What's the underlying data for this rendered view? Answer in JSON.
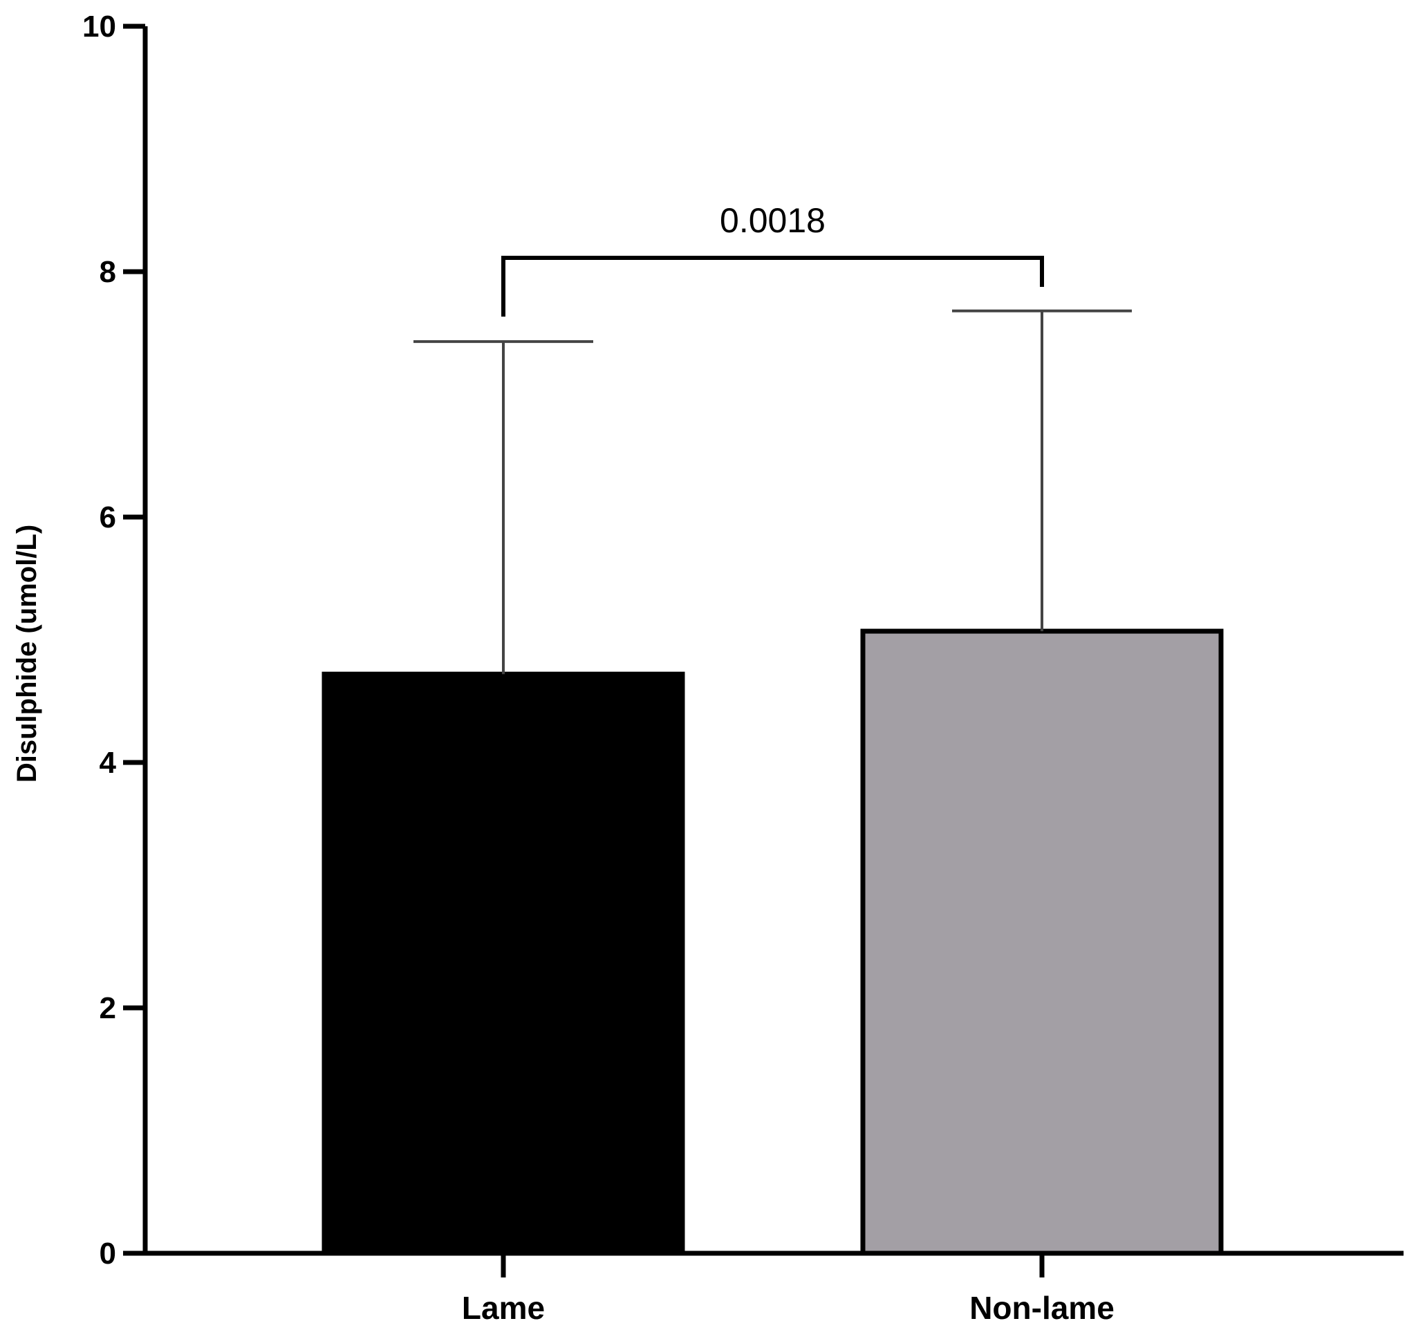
{
  "chart_data": {
    "type": "bar",
    "categories": [
      "Lame",
      "Non-lame"
    ],
    "values": [
      4.72,
      5.07
    ],
    "error_upper": [
      7.43,
      7.68
    ],
    "colors": [
      "#000000",
      "#a39fa5"
    ],
    "xlabel": "",
    "ylabel": "Disulphide (umol/L)",
    "ylim": [
      0,
      10
    ],
    "yticks": [
      0,
      2,
      4,
      6,
      8,
      10
    ],
    "grid": false,
    "legend": "none",
    "annotation": {
      "text": "0.0018",
      "from": 0,
      "to": 1
    }
  }
}
